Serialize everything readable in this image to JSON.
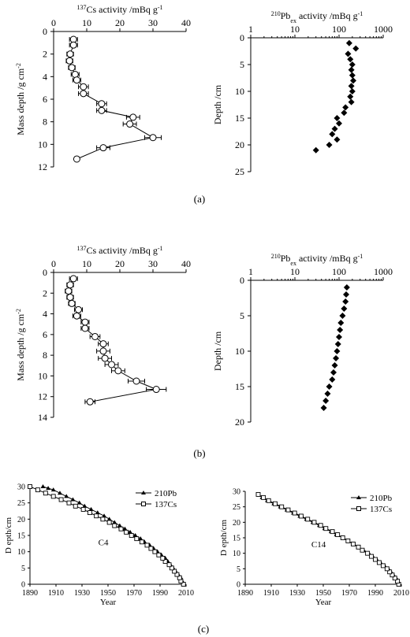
{
  "chart_data": [
    {
      "id": "a_cs",
      "panel": "(a)",
      "type": "line",
      "xlabel_html": {
        "pre": "137",
        "main": "Cs activity /mBq g",
        "sup": "-1"
      },
      "ylabel_html": {
        "main": "Mass depth /g cm",
        "sup": "-2"
      },
      "xlim": [
        0,
        40
      ],
      "xticks": [
        0,
        10,
        20,
        30,
        40
      ],
      "ylim": [
        0,
        12
      ],
      "yticks": [
        0,
        2,
        4,
        6,
        8,
        10,
        12
      ],
      "points": [
        {
          "x": 6,
          "y": 0.7,
          "e": 1.2
        },
        {
          "x": 6,
          "y": 1.2,
          "e": 1.2
        },
        {
          "x": 5,
          "y": 2.0,
          "e": 1.0
        },
        {
          "x": 4.8,
          "y": 2.6,
          "e": 1.0
        },
        {
          "x": 5.5,
          "y": 3.2,
          "e": 1.0
        },
        {
          "x": 6.5,
          "y": 3.8,
          "e": 1.2
        },
        {
          "x": 7,
          "y": 4.3,
          "e": 1.2
        },
        {
          "x": 9,
          "y": 4.9,
          "e": 1.5
        },
        {
          "x": 9,
          "y": 5.5,
          "e": 1.5
        },
        {
          "x": 14.5,
          "y": 6.4,
          "e": 1.5
        },
        {
          "x": 14.5,
          "y": 7.0,
          "e": 1.5
        },
        {
          "x": 24,
          "y": 7.6,
          "e": 2.0
        },
        {
          "x": 23,
          "y": 8.2,
          "e": 2.0
        },
        {
          "x": 30,
          "y": 9.4,
          "e": 2.5
        },
        {
          "x": 15,
          "y": 10.3,
          "e": 2.0
        },
        {
          "x": 7,
          "y": 11.3,
          "e": 0
        }
      ]
    },
    {
      "id": "a_pb",
      "panel": "(a)",
      "type": "scatter",
      "xscale": "log",
      "xlabel_html": {
        "pre": "210",
        "main": "Pb",
        "sub": "ex",
        "main2": " activity /mBq g",
        "sup": "-1"
      },
      "ylabel": "Depth /cm",
      "xlim": [
        1,
        1000
      ],
      "xticks": [
        1,
        10,
        100,
        1000
      ],
      "ylim": [
        0,
        25
      ],
      "yticks": [
        0,
        5,
        10,
        15,
        20,
        25
      ],
      "points": [
        {
          "x": 170,
          "y": 1
        },
        {
          "x": 240,
          "y": 2
        },
        {
          "x": 160,
          "y": 3
        },
        {
          "x": 180,
          "y": 4
        },
        {
          "x": 200,
          "y": 5
        },
        {
          "x": 190,
          "y": 6
        },
        {
          "x": 200,
          "y": 7
        },
        {
          "x": 210,
          "y": 8
        },
        {
          "x": 190,
          "y": 9
        },
        {
          "x": 200,
          "y": 10
        },
        {
          "x": 180,
          "y": 11
        },
        {
          "x": 190,
          "y": 12
        },
        {
          "x": 140,
          "y": 13
        },
        {
          "x": 130,
          "y": 14
        },
        {
          "x": 90,
          "y": 15
        },
        {
          "x": 100,
          "y": 16
        },
        {
          "x": 80,
          "y": 17
        },
        {
          "x": 70,
          "y": 18
        },
        {
          "x": 90,
          "y": 19
        },
        {
          "x": 60,
          "y": 20
        },
        {
          "x": 30,
          "y": 21
        }
      ]
    },
    {
      "id": "b_cs",
      "panel": "(b)",
      "type": "line",
      "xlabel_html": {
        "pre": "137",
        "main": "Cs activity /mBq g",
        "sup": "-1"
      },
      "ylabel_html": {
        "main": "Mass depth /g cm",
        "sup": "-2"
      },
      "xlim": [
        0,
        40
      ],
      "xticks": [
        0,
        10,
        20,
        30,
        40
      ],
      "ylim": [
        0,
        14
      ],
      "yticks": [
        0,
        2,
        4,
        6,
        8,
        10,
        12,
        14
      ],
      "points": [
        {
          "x": 6,
          "y": 0.6,
          "e": 1.2
        },
        {
          "x": 5,
          "y": 1.2,
          "e": 1.0
        },
        {
          "x": 4.5,
          "y": 1.8,
          "e": 1.0
        },
        {
          "x": 5,
          "y": 2.4,
          "e": 1.0
        },
        {
          "x": 5.5,
          "y": 3.0,
          "e": 1.0
        },
        {
          "x": 7.5,
          "y": 3.6,
          "e": 1.2
        },
        {
          "x": 7,
          "y": 4.2,
          "e": 1.2
        },
        {
          "x": 9.5,
          "y": 4.8,
          "e": 1.2
        },
        {
          "x": 9.5,
          "y": 5.4,
          "e": 1.2
        },
        {
          "x": 12.5,
          "y": 6.2,
          "e": 1.5
        },
        {
          "x": 15,
          "y": 6.9,
          "e": 1.5
        },
        {
          "x": 15,
          "y": 7.6,
          "e": 2.0
        },
        {
          "x": 15.5,
          "y": 8.3,
          "e": 2.0
        },
        {
          "x": 17.5,
          "y": 8.9,
          "e": 2.0
        },
        {
          "x": 19.5,
          "y": 9.5,
          "e": 2.0
        },
        {
          "x": 25,
          "y": 10.5,
          "e": 2.5
        },
        {
          "x": 31,
          "y": 11.3,
          "e": 3.0
        },
        {
          "x": 11,
          "y": 12.5,
          "e": 1.5
        }
      ]
    },
    {
      "id": "b_pb",
      "panel": "(b)",
      "type": "scatter",
      "xscale": "log",
      "xlabel_html": {
        "pre": "210",
        "main": "Pb",
        "sub": "ex",
        "main2": " activity /mBq g",
        "sup": "-1"
      },
      "ylabel": "Depth /cm",
      "xlim": [
        1,
        1000
      ],
      "xticks": [
        1,
        10,
        100,
        1000
      ],
      "ylim": [
        0,
        20
      ],
      "yticks": [
        0,
        5,
        10,
        15,
        20
      ],
      "points": [
        {
          "x": 150,
          "y": 1
        },
        {
          "x": 145,
          "y": 2
        },
        {
          "x": 140,
          "y": 3
        },
        {
          "x": 130,
          "y": 4
        },
        {
          "x": 120,
          "y": 5
        },
        {
          "x": 110,
          "y": 6
        },
        {
          "x": 105,
          "y": 7
        },
        {
          "x": 100,
          "y": 8
        },
        {
          "x": 95,
          "y": 9
        },
        {
          "x": 90,
          "y": 10
        },
        {
          "x": 85,
          "y": 11
        },
        {
          "x": 80,
          "y": 12
        },
        {
          "x": 75,
          "y": 13
        },
        {
          "x": 70,
          "y": 14
        },
        {
          "x": 60,
          "y": 15
        },
        {
          "x": 55,
          "y": 16
        },
        {
          "x": 50,
          "y": 17
        },
        {
          "x": 45,
          "y": 18
        }
      ]
    },
    {
      "id": "c_c4",
      "panel": "(c)",
      "type": "line",
      "annotation": "C4",
      "xlabel": "Year",
      "ylabel": "D epth/cm",
      "xlim": [
        1890,
        2010
      ],
      "xticks": [
        1890,
        1910,
        1930,
        1950,
        1970,
        1990,
        2010
      ],
      "ylim": [
        0,
        30
      ],
      "yticks": [
        0,
        5,
        10,
        15,
        20,
        25,
        30
      ],
      "series": [
        {
          "name": "210Pb",
          "marker": "triangle",
          "x": [
            2008,
            2007,
            2006,
            2004,
            2002,
            2000,
            1998,
            1996,
            1994,
            1991,
            1988,
            1985,
            1982,
            1978,
            1975,
            1971,
            1967,
            1963,
            1959,
            1955,
            1951,
            1947,
            1942,
            1937,
            1932,
            1928,
            1923,
            1918,
            1913,
            1908,
            1904,
            1900
          ],
          "y": [
            0,
            1,
            2,
            3,
            4,
            5,
            6,
            7,
            8,
            9,
            10,
            11,
            12,
            13,
            14,
            15,
            16,
            17,
            18,
            19,
            20,
            21,
            22,
            23,
            24,
            25,
            26,
            27,
            28,
            29,
            29.5,
            30
          ]
        },
        {
          "name": "137Cs",
          "marker": "square",
          "x": [
            2008,
            2006,
            2005,
            2003,
            2001,
            1999,
            1997,
            1994,
            1992,
            1989,
            1986,
            1983,
            1980,
            1976,
            1972,
            1968,
            1964,
            1960,
            1955,
            1951,
            1946,
            1941,
            1936,
            1931,
            1925,
            1920,
            1914,
            1908,
            1902,
            1896,
            1890
          ],
          "y": [
            0,
            1,
            2,
            3,
            4,
            5,
            6,
            7,
            8,
            9,
            10,
            11,
            12,
            13,
            14,
            15,
            16,
            17,
            18,
            19,
            20,
            21,
            22,
            23,
            24,
            25,
            26,
            27,
            28,
            29,
            30
          ]
        }
      ]
    },
    {
      "id": "c_c14",
      "panel": "(c)",
      "type": "line",
      "annotation": "C14",
      "xlabel": "Year",
      "ylabel": "D epth/cm",
      "xlim": [
        1890,
        2010
      ],
      "xticks": [
        1890,
        1910,
        1930,
        1950,
        1970,
        1990,
        2010
      ],
      "ylim": [
        0,
        30
      ],
      "yticks": [
        0,
        5,
        10,
        15,
        20,
        25,
        30
      ],
      "series": [
        {
          "name": "210Pb",
          "marker": "triangle",
          "x": [
            2008,
            2007,
            2006,
            2004,
            2002,
            2000,
            1997,
            1994,
            1991,
            1988,
            1985,
            1981,
            1977,
            1973,
            1969,
            1965,
            1960,
            1956,
            1951,
            1947,
            1942,
            1937,
            1932,
            1927,
            1922,
            1917,
            1912,
            1907,
            1903,
            1900
          ],
          "y": [
            0,
            1,
            2,
            3,
            4,
            5,
            6,
            7,
            8,
            9,
            10,
            11,
            12,
            13,
            14,
            15,
            16,
            17,
            18,
            19,
            20,
            21,
            22,
            23,
            24,
            25,
            26,
            27,
            28,
            29
          ]
        },
        {
          "name": "137Cs",
          "marker": "square",
          "x": [
            2008,
            2007,
            2005,
            2003,
            2001,
            1999,
            1996,
            1993,
            1990,
            1987,
            1984,
            1980,
            1977,
            1973,
            1969,
            1965,
            1961,
            1957,
            1952,
            1948,
            1943,
            1938,
            1933,
            1928,
            1923,
            1918,
            1913,
            1908,
            1904,
            1900
          ],
          "y": [
            0,
            1,
            2,
            3,
            4,
            5,
            6,
            7,
            8,
            9,
            10,
            11,
            12,
            13,
            14,
            15,
            16,
            17,
            18,
            19,
            20,
            21,
            22,
            23,
            24,
            25,
            26,
            27,
            28,
            29
          ]
        }
      ]
    }
  ],
  "captions": {
    "a": "(a)",
    "b": "(b)",
    "c": "(c)"
  }
}
